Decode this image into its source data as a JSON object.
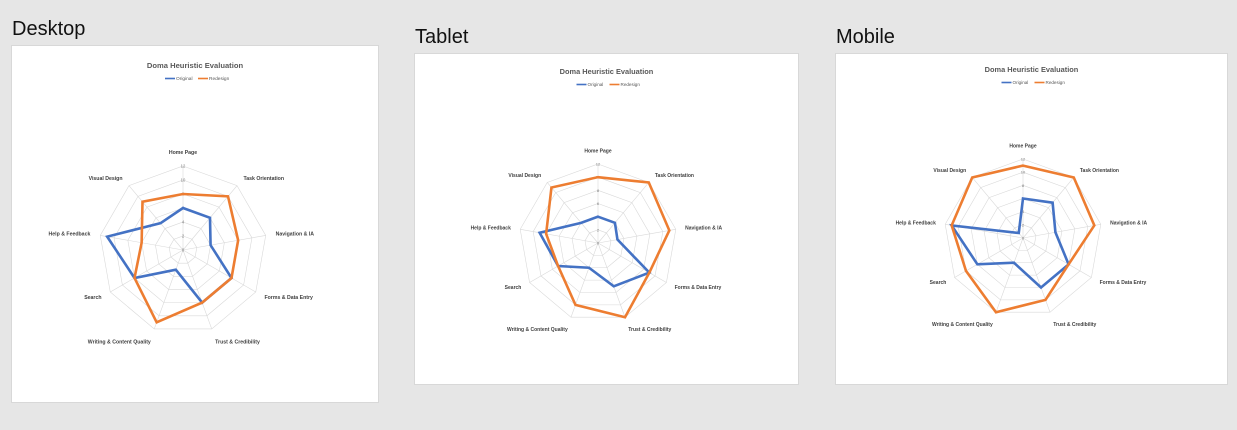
{
  "panels": [
    {
      "label": "Desktop"
    },
    {
      "label": "Tablet"
    },
    {
      "label": "Mobile"
    }
  ],
  "colors": {
    "original": "#4472c4",
    "redesign": "#ed7d31",
    "grid": "#d9d9d9"
  },
  "chart_data": [
    {
      "type": "radar",
      "title": "Doma Heuristic Evaluation",
      "categories": [
        "Home Page",
        "Task Orientation",
        "Navigation & IA",
        "Forms & Data Entry",
        "Trust & Credibility",
        "Writing & Content Quality",
        "Search",
        "Help & Feedback",
        "Visual Design"
      ],
      "ticks": [
        "0",
        "2",
        "4",
        "6",
        "8",
        "10",
        "12"
      ],
      "rlim": [
        0,
        12
      ],
      "legend": "top",
      "series": [
        {
          "name": "Original",
          "values": [
            6,
            6,
            4,
            8,
            8,
            3,
            8,
            11,
            5
          ]
        },
        {
          "name": "Redesign",
          "values": [
            8,
            10,
            8,
            8,
            8,
            11,
            8,
            6,
            9
          ]
        }
      ]
    },
    {
      "type": "radar",
      "title": "Doma Heuristic Evaluation",
      "categories": [
        "Home Page",
        "Task Orientation",
        "Navigation & IA",
        "Forms & Data Entry",
        "Trust & Credibility",
        "Writing & Content Quality",
        "Search",
        "Help & Feedback",
        "Visual Design"
      ],
      "ticks": [
        "0",
        "2",
        "4",
        "6",
        "8",
        "10",
        "12"
      ],
      "rlim": [
        0,
        12
      ],
      "legend": "top",
      "series": [
        {
          "name": "Original",
          "values": [
            4,
            4,
            3,
            9,
            7,
            4,
            7,
            9,
            4
          ]
        },
        {
          "name": "Redesign",
          "values": [
            10,
            12,
            11,
            9,
            12,
            10,
            7,
            8,
            11
          ]
        }
      ]
    },
    {
      "type": "radar",
      "title": "Doma Heuristic Evaluation",
      "categories": [
        "Home Page",
        "Task Orientation",
        "Navigation & IA",
        "Forms & Data Entry",
        "Trust & Credibility",
        "Writing & Content Quality",
        "Search",
        "Help & Feedback",
        "Visual Design"
      ],
      "ticks": [
        "0",
        "2",
        "4",
        "6",
        "8",
        "10",
        "12"
      ],
      "rlim": [
        0,
        12
      ],
      "legend": "top",
      "series": [
        {
          "name": "Original",
          "values": [
            6,
            7,
            5,
            8,
            8,
            4,
            8,
            11,
            1
          ]
        },
        {
          "name": "Redesign",
          "values": [
            11,
            12,
            11,
            8,
            10,
            12,
            10,
            11,
            12
          ]
        }
      ]
    }
  ]
}
